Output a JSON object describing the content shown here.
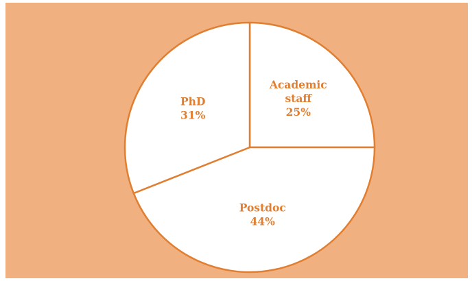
{
  "chart_data": {
    "type": "pie",
    "slices": [
      {
        "label_lines": [
          "Academic",
          "staff"
        ],
        "label": "Academic staff",
        "pct_text": "25%",
        "value": 25
      },
      {
        "label_lines": [
          "Postdoc"
        ],
        "label": "Postdoc",
        "pct_text": "44%",
        "value": 44
      },
      {
        "label_lines": [
          "PhD"
        ],
        "label": "PhD",
        "pct_text": "31%",
        "value": 31
      }
    ],
    "colors": {
      "background": "#f0b080",
      "slice_fill": "#ffffff",
      "outline": "#e07f32",
      "label_text": "#e07f32"
    },
    "start_angle_deg": 0,
    "direction": "clockwise"
  }
}
